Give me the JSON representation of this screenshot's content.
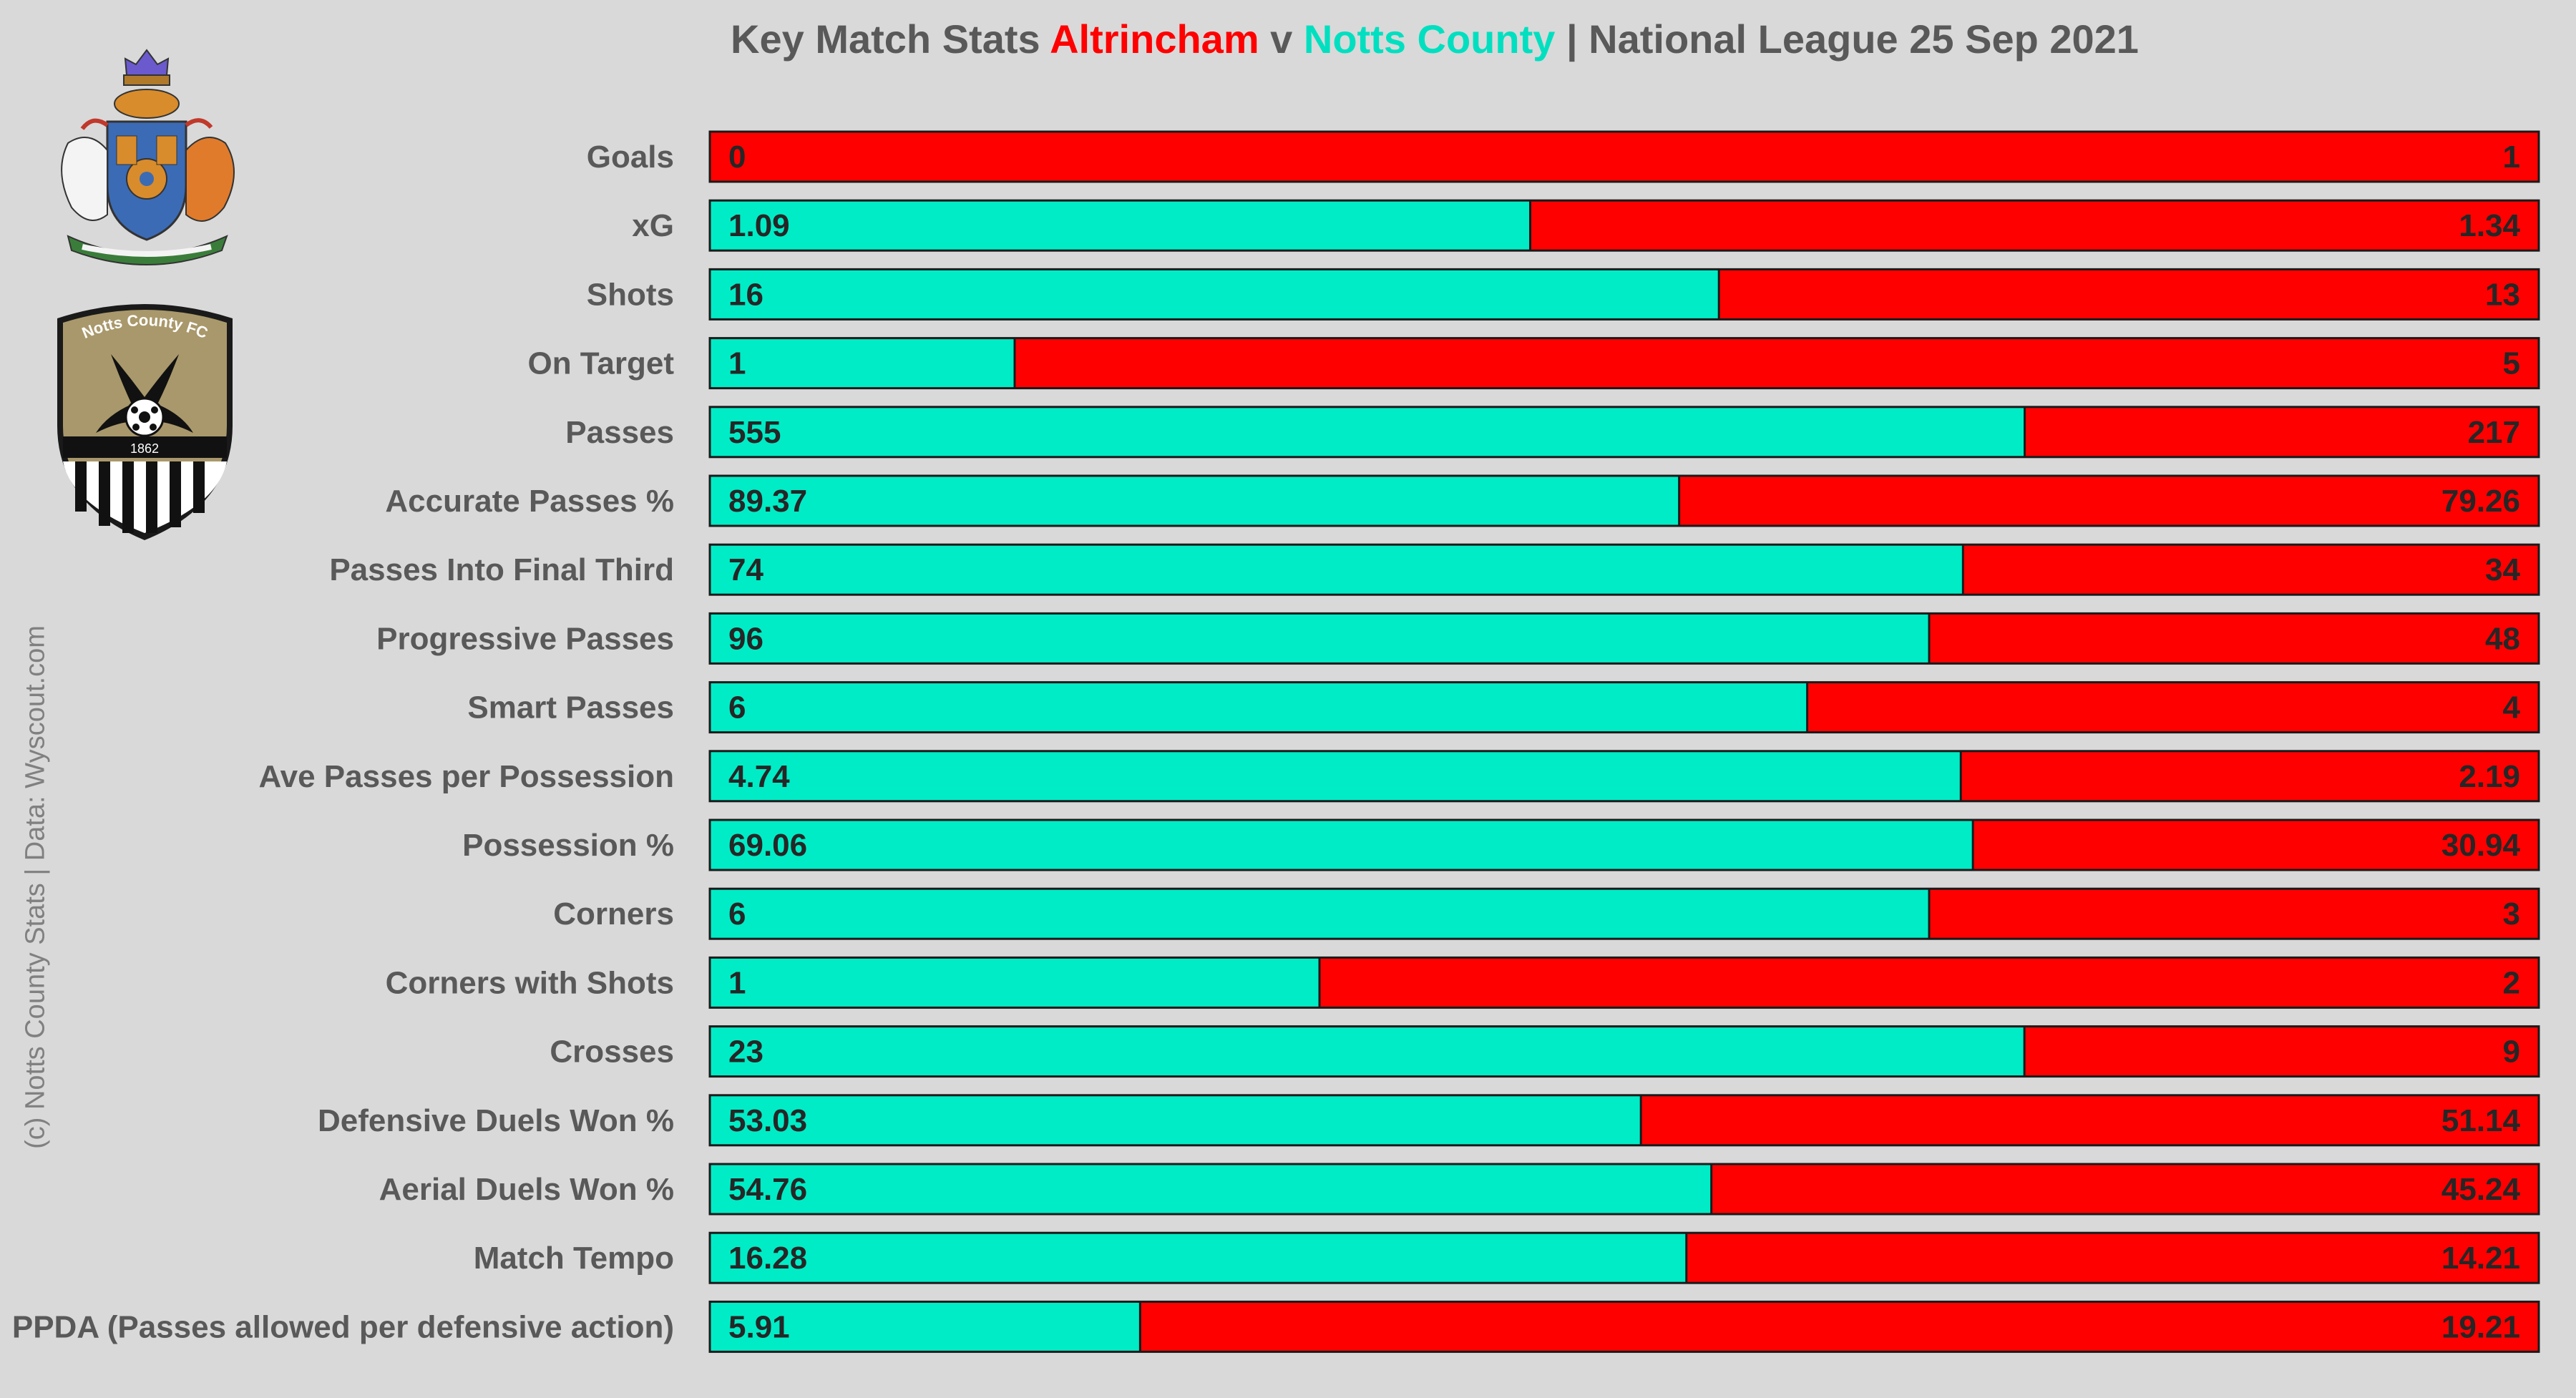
{
  "title": {
    "prefix": "Key Match Stats ",
    "home_team": "Altrincham",
    "connector": " v ",
    "away_team": "Notts County",
    "suffix": " | National League 25 Sep 2021"
  },
  "credit": "(c) Notts County Stats | Data: Wyscout.com",
  "crests": [
    {
      "name": "Altrincham crest",
      "icon": "altrincham-crest-icon"
    },
    {
      "name": "Notts County FC",
      "icon": "notts-county-crest-icon",
      "text": "Notts County FC",
      "year": "1862"
    }
  ],
  "colors": {
    "notts_county": "#00ecc6",
    "altrincham": "#ff0000",
    "background": "#d9d9d9"
  },
  "chart_data": {
    "type": "bar",
    "orientation": "horizontal-stacked-share",
    "series": [
      {
        "name": "Notts County",
        "color": "#00ecc6"
      },
      {
        "name": "Altrincham",
        "color": "#ff0000"
      }
    ],
    "rows": [
      {
        "label": "Goals",
        "left": 0,
        "right": 1,
        "left_text": "0",
        "right_text": "1"
      },
      {
        "label": "xG",
        "left": 1.09,
        "right": 1.34,
        "left_text": "1.09",
        "right_text": "1.34"
      },
      {
        "label": "Shots",
        "left": 16,
        "right": 13,
        "left_text": "16",
        "right_text": "13"
      },
      {
        "label": "On Target",
        "left": 1,
        "right": 5,
        "left_text": "1",
        "right_text": "5"
      },
      {
        "label": "Passes",
        "left": 555,
        "right": 217,
        "left_text": "555",
        "right_text": "217"
      },
      {
        "label": "Accurate Passes %",
        "left": 89.37,
        "right": 79.26,
        "left_text": "89.37",
        "right_text": "79.26"
      },
      {
        "label": "Passes Into Final Third",
        "left": 74,
        "right": 34,
        "left_text": "74",
        "right_text": "34"
      },
      {
        "label": "Progressive Passes",
        "left": 96,
        "right": 48,
        "left_text": "96",
        "right_text": "48"
      },
      {
        "label": "Smart Passes",
        "left": 6,
        "right": 4,
        "left_text": "6",
        "right_text": "4"
      },
      {
        "label": "Ave Passes per Possession",
        "left": 4.74,
        "right": 2.19,
        "left_text": "4.74",
        "right_text": "2.19"
      },
      {
        "label": "Possession %",
        "left": 69.06,
        "right": 30.94,
        "left_text": "69.06",
        "right_text": "30.94"
      },
      {
        "label": "Corners",
        "left": 6,
        "right": 3,
        "left_text": "6",
        "right_text": "3"
      },
      {
        "label": "Corners with Shots",
        "left": 1,
        "right": 2,
        "left_text": "1",
        "right_text": "2"
      },
      {
        "label": "Crosses",
        "left": 23,
        "right": 9,
        "left_text": "23",
        "right_text": "9"
      },
      {
        "label": "Defensive Duels Won %",
        "left": 53.03,
        "right": 51.14,
        "left_text": "53.03",
        "right_text": "51.14"
      },
      {
        "label": "Aerial Duels Won %",
        "left": 54.76,
        "right": 45.24,
        "left_text": "54.76",
        "right_text": "45.24"
      },
      {
        "label": "Match Tempo",
        "left": 16.28,
        "right": 14.21,
        "left_text": "16.28",
        "right_text": "14.21"
      },
      {
        "label": "PPDA (Passes allowed per defensive action)",
        "left": 5.91,
        "right": 19.21,
        "left_text": "5.91",
        "right_text": "19.21"
      }
    ]
  }
}
